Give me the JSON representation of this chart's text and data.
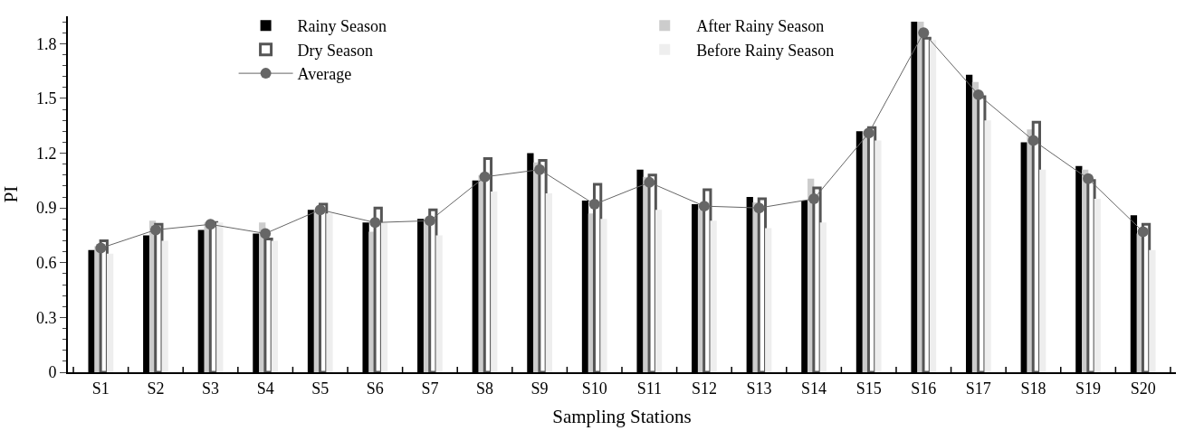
{
  "chart_data": {
    "type": "bar",
    "xlabel": "Sampling Stations",
    "ylabel": "PI",
    "categories": [
      "S1",
      "S2",
      "S3",
      "S4",
      "S5",
      "S6",
      "S7",
      "S8",
      "S9",
      "S10",
      "S11",
      "S12",
      "S13",
      "S14",
      "S15",
      "S16",
      "S17",
      "S18",
      "S19",
      "S20"
    ],
    "series": [
      {
        "name": "Rainy Season",
        "color": "#000000",
        "values": [
          0.67,
          0.75,
          0.78,
          0.76,
          0.89,
          0.82,
          0.84,
          1.05,
          1.2,
          0.94,
          1.11,
          0.92,
          0.96,
          0.94,
          1.32,
          1.92,
          1.63,
          1.26,
          1.13,
          0.86
        ]
      },
      {
        "name": "After Rainy Season",
        "color": "#cccccc",
        "values": [
          0.69,
          0.83,
          0.82,
          0.82,
          0.89,
          0.77,
          0.83,
          1.08,
          1.15,
          0.87,
          1.07,
          0.89,
          0.93,
          1.06,
          1.32,
          1.92,
          1.59,
          1.33,
          1.11,
          0.76
        ]
      },
      {
        "name": "Dry Season",
        "color": "#555555",
        "values": [
          0.72,
          0.81,
          0.82,
          0.73,
          0.92,
          0.9,
          0.89,
          1.17,
          1.16,
          1.03,
          1.08,
          1.0,
          0.95,
          1.01,
          1.34,
          1.83,
          1.51,
          1.37,
          1.05,
          0.81
        ]
      },
      {
        "name": "Before Rainy Season",
        "color": "#eeeeee",
        "values": [
          0.65,
          0.72,
          0.82,
          0.72,
          0.87,
          0.82,
          0.75,
          0.99,
          0.98,
          0.84,
          0.89,
          0.83,
          0.79,
          0.82,
          1.27,
          1.82,
          1.38,
          1.11,
          0.95,
          0.67
        ]
      },
      {
        "name": "Average",
        "type": "line",
        "color": "#666666",
        "marker": "circle",
        "values": [
          0.68,
          0.78,
          0.81,
          0.76,
          0.89,
          0.82,
          0.83,
          1.07,
          1.11,
          0.92,
          1.04,
          0.91,
          0.9,
          0.95,
          1.31,
          1.86,
          1.52,
          1.27,
          1.06,
          0.77
        ]
      }
    ],
    "ylim": [
      0,
      1.95
    ],
    "yticks": [
      0,
      0.3,
      0.6,
      0.9,
      1.2,
      1.5,
      1.8
    ],
    "legend": "top"
  }
}
